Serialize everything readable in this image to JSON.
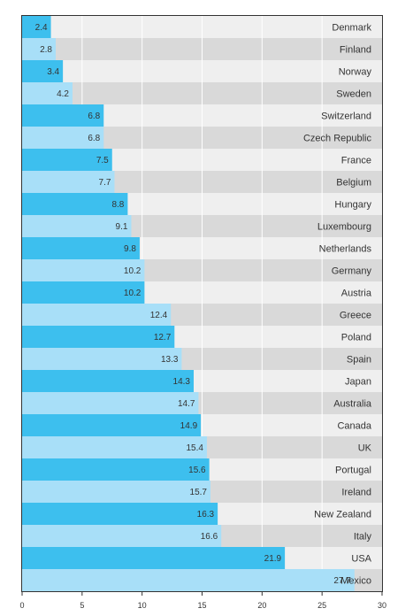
{
  "chart_data": {
    "type": "bar",
    "orientation": "horizontal",
    "categories": [
      "Denmark",
      "Finland",
      "Norway",
      "Sweden",
      "Switzerland",
      "Czech Republic",
      "France",
      "Belgium",
      "Hungary",
      "Luxembourg",
      "Netherlands",
      "Germany",
      "Austria",
      "Greece",
      "Poland",
      "Spain",
      "Japan",
      "Australia",
      "Canada",
      "UK",
      "Portugal",
      "Ireland",
      "New Zealand",
      "Italy",
      "USA",
      "Mexico"
    ],
    "values": [
      2.4,
      2.8,
      3.4,
      4.2,
      6.8,
      6.8,
      7.5,
      7.7,
      8.8,
      9.1,
      9.8,
      10.2,
      10.2,
      12.4,
      12.7,
      13.3,
      14.3,
      14.7,
      14.9,
      15.4,
      15.6,
      15.7,
      16.3,
      16.6,
      21.9,
      27.7
    ],
    "value_labels": [
      "2.4",
      "2.8",
      "3.4",
      "4.2",
      "6.8",
      "6.8",
      "7.5",
      "7.7",
      "8.8",
      "9.1",
      "9.8",
      "10.2",
      "10.2",
      "12.4",
      "12.7",
      "13.3",
      "14.3",
      "14.7",
      "14.9",
      "15.4",
      "15.6",
      "15.7",
      "16.3",
      "16.6",
      "21.9",
      "27.7"
    ],
    "xlim": [
      0,
      30
    ],
    "xticks": [
      0,
      5,
      10,
      15,
      20,
      25,
      30
    ],
    "xtick_labels": [
      "0",
      "5",
      "10",
      "15",
      "20",
      "25",
      "30"
    ],
    "title": "",
    "xlabel": "",
    "ylabel": "",
    "grid": true,
    "legend": "none",
    "colors": {
      "bar_dark": "#3dbfee",
      "bar_light": "#a8dff8",
      "row_light": "#efefef",
      "row_dark": "#d9d9d9",
      "grid": "#ffffff",
      "axis": "#333333"
    }
  }
}
